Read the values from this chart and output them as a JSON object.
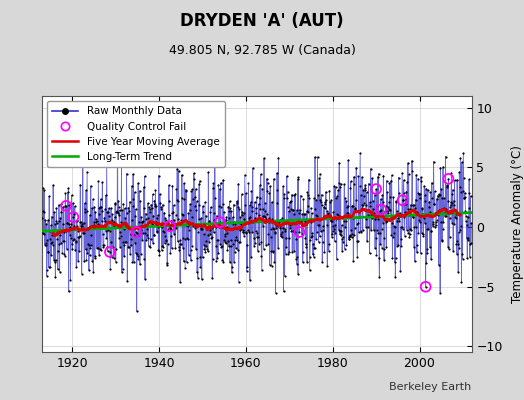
{
  "title": "DRYDEN 'A' (AUT)",
  "subtitle": "49.805 N, 92.785 W (Canada)",
  "ylabel": "Temperature Anomaly (°C)",
  "attribution": "Berkeley Earth",
  "xlim": [
    1913,
    2012
  ],
  "ylim": [
    -10.5,
    11
  ],
  "yticks": [
    -10,
    -5,
    0,
    5,
    10
  ],
  "xticks": [
    1920,
    1940,
    1960,
    1980,
    2000
  ],
  "start_year": 1913.0,
  "end_year": 2012.0,
  "fig_bg_color": "#d8d8d8",
  "plot_bg_color": "#ffffff",
  "raw_line_color": "#3333cc",
  "raw_dot_color": "#000000",
  "moving_avg_color": "#dd0000",
  "trend_color": "#00aa00",
  "qc_fail_color": "#ff00ff",
  "seed": 42,
  "trend_slope": 0.012,
  "trend_intercept": -0.25,
  "noise_std": 2.1
}
